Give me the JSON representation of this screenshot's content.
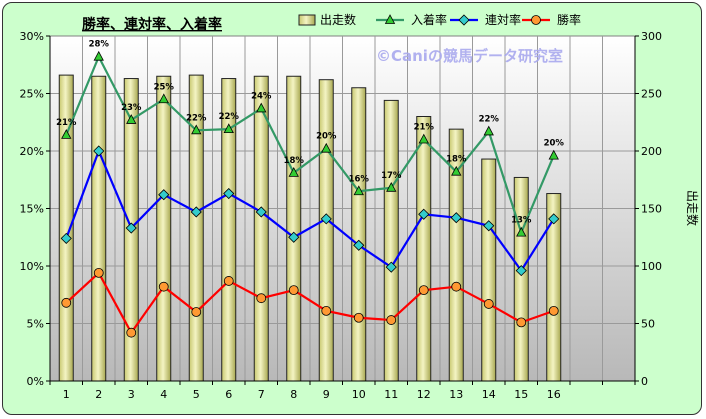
{
  "chart_data": {
    "type": "bar+line",
    "title": "勝率、連対率、入着率",
    "watermark": "©Caniの競馬データ研究室",
    "y2label": "出走数",
    "categories": [
      "1",
      "2",
      "3",
      "4",
      "5",
      "6",
      "7",
      "8",
      "9",
      "10",
      "11",
      "12",
      "13",
      "14",
      "15",
      "16"
    ],
    "y_ticks": [
      "0%",
      "5%",
      "10%",
      "15%",
      "20%",
      "25%",
      "30%"
    ],
    "y2_ticks": [
      "0",
      "50",
      "100",
      "150",
      "200",
      "250",
      "300"
    ],
    "ylim": [
      0,
      30
    ],
    "y2lim": [
      0,
      300
    ],
    "grid": true,
    "legend_position": "top",
    "bars": {
      "name": "出走数",
      "color": "#e6e699",
      "values": [
        266,
        265,
        263,
        265,
        266,
        263,
        265,
        265,
        262,
        255,
        244,
        230,
        219,
        193,
        177,
        163
      ]
    },
    "series": [
      {
        "name": "入着率",
        "color": "#339966",
        "marker": "triangle",
        "values": [
          21.4,
          28.2,
          22.7,
          24.5,
          21.8,
          21.9,
          23.7,
          18.1,
          20.2,
          16.5,
          16.8,
          21.0,
          18.2,
          21.7,
          12.9,
          19.6
        ],
        "labels": [
          "21%",
          "28%",
          "23%",
          "25%",
          "22%",
          "22%",
          "24%",
          "18%",
          "20%",
          "16%",
          "17%",
          "21%",
          "18%",
          "22%",
          "13%",
          "20%"
        ]
      },
      {
        "name": "連対率",
        "color": "#0000ff",
        "marker": "diamond",
        "values": [
          12.4,
          20.0,
          13.3,
          16.2,
          14.7,
          16.3,
          14.7,
          12.5,
          14.1,
          11.8,
          9.9,
          14.5,
          14.2,
          13.5,
          9.6,
          14.1
        ]
      },
      {
        "name": "勝率",
        "color": "#ff0000",
        "marker": "circle",
        "values": [
          6.8,
          9.4,
          4.2,
          8.2,
          6.0,
          8.7,
          7.2,
          7.9,
          6.1,
          5.5,
          5.3,
          7.9,
          8.2,
          6.7,
          5.1,
          6.1
        ]
      }
    ]
  }
}
